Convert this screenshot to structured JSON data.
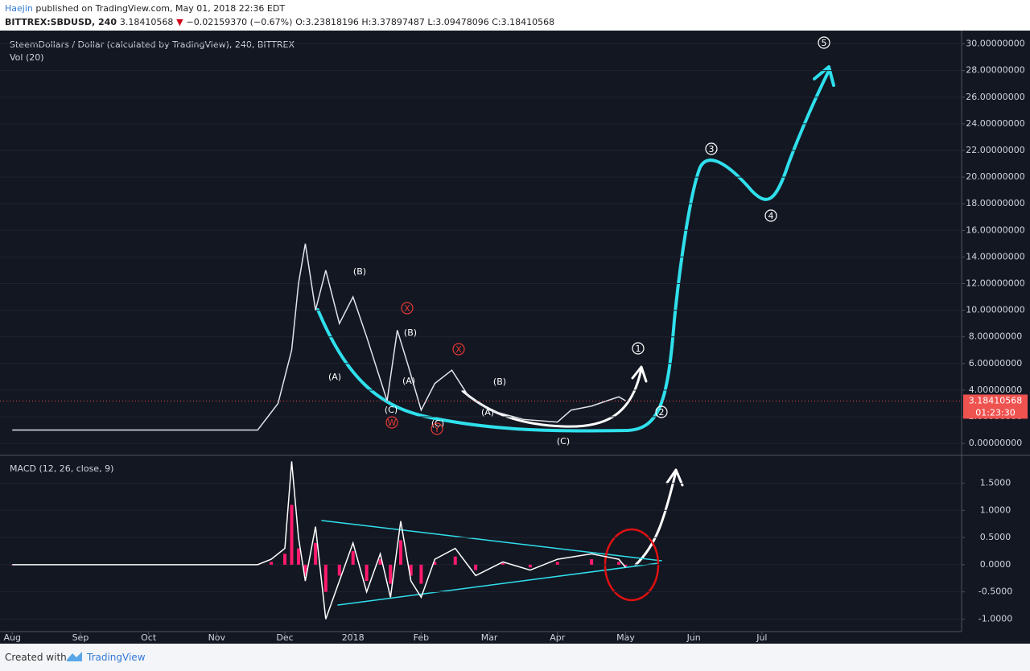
{
  "header": {
    "author": "Haejin",
    "published": "published on TradingView.com, May 01, 2018 22:36 EDT",
    "symbol": "BITTREX:SBDUSD, 240",
    "price": "3.18410568",
    "change": "−0.02159370 (−0.67%)",
    "ohlc": "O:3.23818196 H:3.37897487 L:3.09478096 C:3.18410568"
  },
  "footer": {
    "created": "Created with",
    "brand": "TradingView"
  },
  "chart_data": [
    {
      "type": "line",
      "title": "SteemDollars / Dollar (calculated by TradingView), 240, BITTREX",
      "subtitle": "Vol (20)",
      "x": [
        0,
        1,
        2,
        3,
        3.6,
        3.75,
        3.9,
        4.1,
        4.2,
        4.3,
        4.45,
        4.6,
        4.8,
        5.0,
        5.2,
        5.5,
        5.65,
        5.8,
        6.0,
        6.2,
        6.45,
        6.7,
        7.0,
        7.5,
        8.0,
        8.2,
        8.5,
        8.9,
        9.0
      ],
      "series": [
        {
          "color": "#e0e3eb",
          "values": [
            1.0,
            1.0,
            1.0,
            1.0,
            1.0,
            2.0,
            3.0,
            7,
            12,
            15,
            10,
            13,
            9,
            11,
            8,
            3.2,
            8.5,
            6,
            2.5,
            4.5,
            5.5,
            3.5,
            2.5,
            1.8,
            1.6,
            2.5,
            2.8,
            3.5,
            3.2
          ]
        }
      ],
      "xlim": [
        -0.18,
        13.93
      ],
      "ylim": [
        -0.9,
        31
      ],
      "xticks": [
        {
          "value": 0,
          "label": "Aug"
        },
        {
          "value": 1,
          "label": "Sep"
        },
        {
          "value": 2,
          "label": "Oct"
        },
        {
          "value": 3,
          "label": "Nov"
        },
        {
          "value": 4,
          "label": "Dec"
        },
        {
          "value": 5,
          "label": "2018"
        },
        {
          "value": 6,
          "label": "Feb"
        },
        {
          "value": 7,
          "label": "Mar"
        },
        {
          "value": 8,
          "label": "Apr"
        },
        {
          "value": 9,
          "label": "May"
        },
        {
          "value": 10,
          "label": "Jun"
        },
        {
          "value": 11,
          "label": "Jul"
        }
      ],
      "yticks": [
        {
          "value": 0,
          "label": "0.00000000"
        },
        {
          "value": 2,
          "label": "2.00000000"
        },
        {
          "value": 4,
          "label": "4.00000000"
        },
        {
          "value": 6,
          "label": "6.00000000"
        },
        {
          "value": 8,
          "label": "8.00000000"
        },
        {
          "value": 10,
          "label": "10.00000000"
        },
        {
          "value": 12,
          "label": "12.00000000"
        },
        {
          "value": 14,
          "label": "14.00000000"
        },
        {
          "value": 16,
          "label": "16.00000000"
        },
        {
          "value": 18,
          "label": "18.00000000"
        },
        {
          "value": 20,
          "label": "20.00000000"
        },
        {
          "value": 22,
          "label": "22.00000000"
        },
        {
          "value": 24,
          "label": "24.00000000"
        },
        {
          "value": 26,
          "label": "26.00000000"
        },
        {
          "value": 28,
          "label": "28.00000000"
        },
        {
          "value": 30,
          "label": "30.00000000"
        }
      ],
      "last_price": {
        "value": 3.18410568,
        "label": "3.18410568"
      },
      "countdown": "01:23:30",
      "last_price_color": "#ef5350",
      "annotations": [
        "(B)",
        "(A)",
        "(C)",
        "W",
        "X",
        "(B)",
        "(A)",
        "(C)",
        "Y",
        "X",
        "(B)",
        "(A)",
        "(C)",
        "1",
        "2",
        "3",
        "4",
        "5"
      ]
    },
    {
      "type": "line",
      "title": "MACD (12, 26, close, 9)",
      "x": [
        0,
        1,
        2,
        3,
        3.6,
        3.8,
        4.0,
        4.1,
        4.2,
        4.3,
        4.45,
        4.6,
        4.8,
        5.0,
        5.2,
        5.4,
        5.55,
        5.7,
        5.85,
        6.0,
        6.2,
        6.5,
        6.8,
        7.2,
        7.6,
        8.0,
        8.5,
        8.9,
        9.0
      ],
      "series": [
        {
          "color": "#ff1a6c",
          "kind": "bar",
          "values": [
            0,
            0,
            0,
            0,
            0,
            0.05,
            0.2,
            1.1,
            0.3,
            -0.2,
            0.4,
            -0.5,
            -0.2,
            0.25,
            -0.3,
            0.1,
            -0.35,
            0.45,
            -0.2,
            -0.35,
            0.05,
            0.15,
            -0.1,
            0.03,
            -0.05,
            0.05,
            0.1,
            0.05,
            -0.03
          ]
        },
        {
          "color": "#ffffff",
          "kind": "line",
          "values": [
            0,
            0,
            0,
            0,
            0,
            0.1,
            0.3,
            1.9,
            0.5,
            -0.3,
            0.7,
            -1.0,
            -0.3,
            0.4,
            -0.5,
            0.2,
            -0.6,
            0.8,
            -0.3,
            -0.6,
            0.1,
            0.3,
            -0.2,
            0.05,
            -0.1,
            0.1,
            0.2,
            0.1,
            -0.05
          ]
        }
      ],
      "xlim": [
        -0.18,
        13.93
      ],
      "ylim": [
        -1.23,
        2.01
      ],
      "yticks": [
        {
          "value": -1,
          "label": "-1.0000"
        },
        {
          "value": -0.5,
          "label": "-0.5000"
        },
        {
          "value": 0,
          "label": "0.0000"
        },
        {
          "value": 0.5,
          "label": "0.5000"
        },
        {
          "value": 1,
          "label": "1.0000"
        },
        {
          "value": 1.5,
          "label": "1.5000"
        }
      ]
    }
  ]
}
